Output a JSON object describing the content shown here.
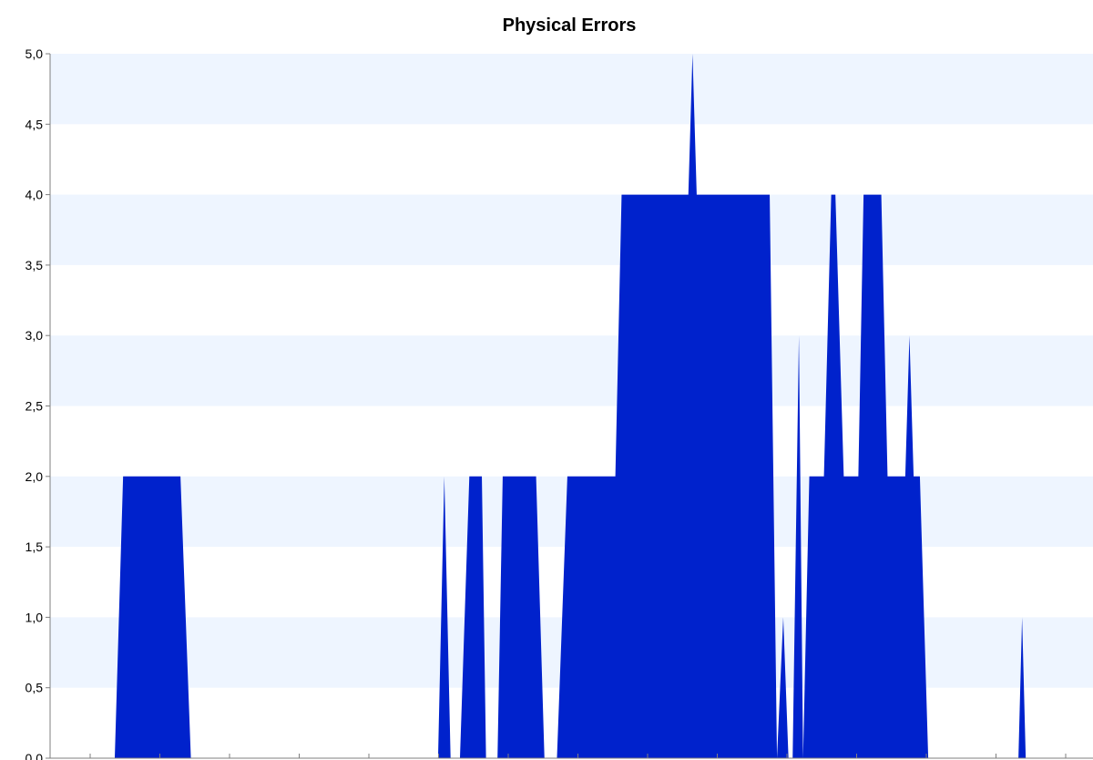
{
  "chart_data": {
    "type": "area",
    "title": "Physical Errors",
    "xlabel": "",
    "ylabel": "",
    "ylim": [
      0,
      5
    ],
    "yticks": [
      "0,0",
      "0,5",
      "1,0",
      "1,5",
      "2,0",
      "2,5",
      "3,0",
      "3,5",
      "4,0",
      "4,5",
      "5,0"
    ],
    "x_tick_count": 15,
    "grid": "horizontal bands",
    "colors": {
      "area": "#0022CC",
      "band": "#EEF5FF",
      "background": "#FFFFFF"
    },
    "x": [
      0,
      6.2,
      7.0,
      12.5,
      13.5,
      37.2,
      37.8,
      38.4,
      39.3,
      40.2,
      41.4,
      41.8,
      42.9,
      43.4,
      46.6,
      47.4,
      48.6,
      49.6,
      54.2,
      54.8,
      61.2,
      61.6,
      62.0,
      63.2,
      69.0,
      69.7,
      70.3,
      70.8,
      71.2,
      71.8,
      72.2,
      72.8,
      73.1,
      74.2,
      74.9,
      75.3,
      76.1,
      77.5,
      78.0,
      79.7,
      80.3,
      82.0,
      82.4,
      82.8,
      83.4,
      84.2,
      100
    ],
    "values": [
      0,
      0,
      2,
      2,
      0,
      0,
      2,
      0,
      0,
      2,
      2,
      0,
      0,
      2,
      2,
      0,
      0,
      2,
      2,
      4,
      4,
      5,
      4,
      4,
      4,
      0,
      1,
      0,
      0,
      3,
      0,
      2,
      2,
      2,
      4,
      4,
      2,
      2,
      4,
      4,
      2,
      2,
      3,
      2,
      2,
      0,
      0
    ],
    "spikes": [
      {
        "x": 93.2,
        "value": 1
      }
    ]
  }
}
